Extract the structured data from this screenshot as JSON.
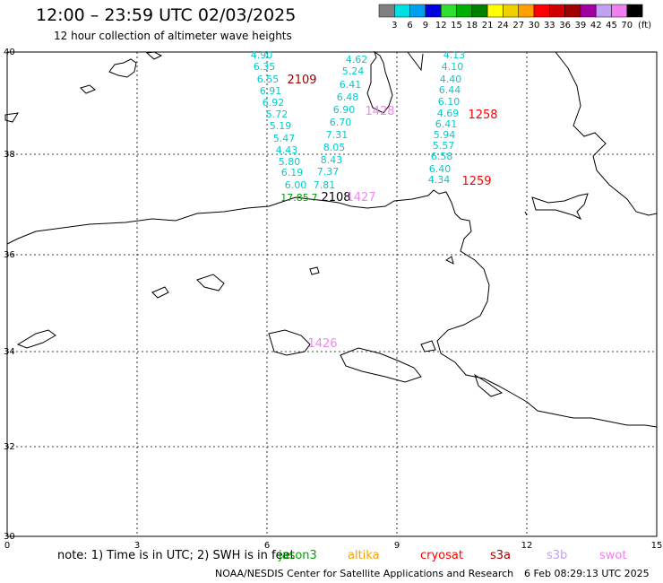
{
  "header": {
    "title": "12:00 – 23:59 UTC 02/03/2025",
    "subtitle": "12 hour collection of altimeter wave heights"
  },
  "color_scale": {
    "unit_label": "(ft)",
    "bins": [
      {
        "color": "#808080",
        "label": "3"
      },
      {
        "color": "#00e0e0",
        "label": "6"
      },
      {
        "color": "#00a0f0",
        "label": "9"
      },
      {
        "color": "#0000e0",
        "label": "12"
      },
      {
        "color": "#30e030",
        "label": "15"
      },
      {
        "color": "#00b000",
        "label": "18"
      },
      {
        "color": "#008000",
        "label": "21"
      },
      {
        "color": "#ffff00",
        "label": "24"
      },
      {
        "color": "#f0d000",
        "label": "27"
      },
      {
        "color": "#ffa000",
        "label": "30"
      },
      {
        "color": "#ff0000",
        "label": "33"
      },
      {
        "color": "#d00000",
        "label": "36"
      },
      {
        "color": "#a00000",
        "label": "39"
      },
      {
        "color": "#a000a0",
        "label": "42"
      },
      {
        "color": "#c0a0f0",
        "label": "45"
      },
      {
        "color": "#f080f0",
        "label": "70"
      },
      {
        "color": "#000000",
        "label": ""
      }
    ]
  },
  "map": {
    "lon_ticks": [
      "0",
      "3",
      "6",
      "9",
      "12",
      "15"
    ],
    "lat_ticks": [
      "40",
      "38",
      "36",
      "34",
      "32",
      "30"
    ],
    "wave_labels": [
      {
        "text": "4.90",
        "color": "#00cccc"
      },
      {
        "text": "6.35",
        "color": "#00cccc"
      },
      {
        "text": "6.55",
        "color": "#00cccc"
      },
      {
        "text": "6.91",
        "color": "#00cccc"
      },
      {
        "text": "6.92",
        "color": "#00cccc"
      },
      {
        "text": "5.72",
        "color": "#00cccc"
      },
      {
        "text": "5.19",
        "color": "#00cccc"
      },
      {
        "text": "5.47",
        "color": "#00cccc"
      },
      {
        "text": "4.43",
        "color": "#00cccc"
      },
      {
        "text": "5.80",
        "color": "#00cccc"
      },
      {
        "text": "6.19",
        "color": "#00cccc"
      },
      {
        "text": "6.00",
        "color": "#00cccc"
      },
      {
        "text": "4.62",
        "color": "#00cccc"
      },
      {
        "text": "5.24",
        "color": "#00cccc"
      },
      {
        "text": "6.41",
        "color": "#00cccc"
      },
      {
        "text": "6.48",
        "color": "#00cccc"
      },
      {
        "text": "6.90",
        "color": "#00cccc"
      },
      {
        "text": "6.70",
        "color": "#00cccc"
      },
      {
        "text": "7.31",
        "color": "#00cccc"
      },
      {
        "text": "8.05",
        "color": "#00cccc"
      },
      {
        "text": "8.43",
        "color": "#00cccc"
      },
      {
        "text": "7.37",
        "color": "#00cccc"
      },
      {
        "text": "7.81",
        "color": "#00cccc"
      },
      {
        "text": "4.13",
        "color": "#00cccc"
      },
      {
        "text": "4.10",
        "color": "#00cccc"
      },
      {
        "text": "4.40",
        "color": "#00cccc"
      },
      {
        "text": "6.44",
        "color": "#00cccc"
      },
      {
        "text": "6.10",
        "color": "#00cccc"
      },
      {
        "text": "4.69",
        "color": "#00cccc"
      },
      {
        "text": "6.41",
        "color": "#00cccc"
      },
      {
        "text": "5.94",
        "color": "#00cccc"
      },
      {
        "text": "5.57",
        "color": "#00cccc"
      },
      {
        "text": "6.58",
        "color": "#00cccc"
      },
      {
        "text": "6.40",
        "color": "#00cccc"
      },
      {
        "text": "4.34",
        "color": "#00cccc"
      },
      {
        "text": "17.85",
        "color": "#00a000"
      },
      {
        "text": "7",
        "color": "#00a000"
      }
    ],
    "time_labels": [
      {
        "text": "2109",
        "color": "#a00000"
      },
      {
        "text": "1428",
        "color": "#ee88ee"
      },
      {
        "text": "1258",
        "color": "#ff0000"
      },
      {
        "text": "1259",
        "color": "#ff0000"
      },
      {
        "text": "2108",
        "color": "#000000"
      },
      {
        "text": "1427",
        "color": "#ee88ee"
      },
      {
        "text": "1426",
        "color": "#ee88ee"
      }
    ]
  },
  "footer": {
    "note": "note:  1) Time is in UTC;  2) SWH is in feet",
    "satellites": [
      {
        "name": "jason3",
        "color": "#00a000"
      },
      {
        "name": "altika",
        "color": "#ffa000"
      },
      {
        "name": "cryosat",
        "color": "#ff0000"
      },
      {
        "name": "s3a",
        "color": "#a00000"
      },
      {
        "name": "s3b",
        "color": "#c0a0f0"
      },
      {
        "name": "swot",
        "color": "#f080f0"
      }
    ],
    "credit": "NOAA/NESDIS Center for Satellite Applications and Research",
    "timestamp": "6 Feb 08:29:13 UTC 2025"
  }
}
